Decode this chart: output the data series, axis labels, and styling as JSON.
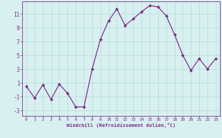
{
  "x": [
    0,
    1,
    2,
    3,
    4,
    5,
    6,
    7,
    8,
    9,
    10,
    11,
    12,
    13,
    14,
    15,
    16,
    17,
    18,
    19,
    20,
    21,
    22,
    23
  ],
  "y": [
    0.5,
    -1.2,
    0.7,
    -1.4,
    0.8,
    -0.5,
    -2.5,
    -2.5,
    3.0,
    7.3,
    10.0,
    11.7,
    9.3,
    10.3,
    11.3,
    12.2,
    12.0,
    10.7,
    8.0,
    5.0,
    2.8,
    4.5,
    3.0,
    4.5
  ],
  "line_color": "#7b2d8b",
  "marker": "D",
  "marker_size": 2.0,
  "bg_color": "#d8f0f0",
  "grid_color": "#b8dede",
  "xlabel": "Windchill (Refroidissement éolien,°C)",
  "xlim": [
    -0.5,
    23.5
  ],
  "ylim": [
    -3.8,
    12.8
  ],
  "yticks": [
    -3,
    -1,
    1,
    3,
    5,
    7,
    9,
    11
  ],
  "xticks": [
    0,
    1,
    2,
    3,
    4,
    5,
    6,
    7,
    8,
    9,
    10,
    11,
    12,
    13,
    14,
    15,
    16,
    17,
    18,
    19,
    20,
    21,
    22,
    23
  ]
}
